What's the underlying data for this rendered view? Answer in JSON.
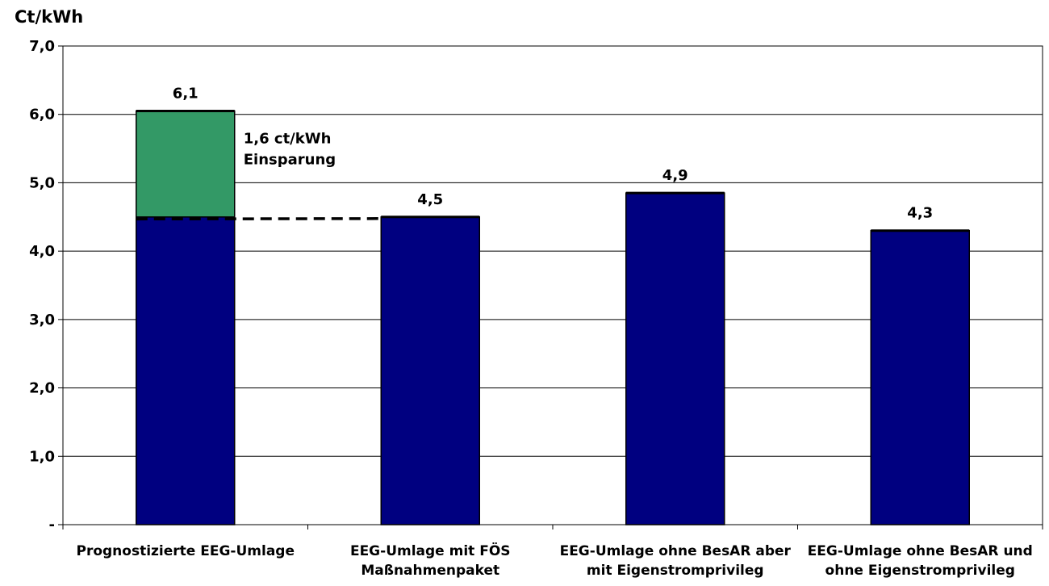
{
  "chart_data": {
    "type": "bar",
    "stacked": true,
    "ylabel": "Ct/kWh",
    "ylim": [
      0,
      7
    ],
    "y_ticks": [
      {
        "value": 0,
        "label": "-"
      },
      {
        "value": 1,
        "label": "1,0"
      },
      {
        "value": 2,
        "label": "2,0"
      },
      {
        "value": 3,
        "label": "3,0"
      },
      {
        "value": 4,
        "label": "4,0"
      },
      {
        "value": 5,
        "label": "5,0"
      },
      {
        "value": 6,
        "label": "6,0"
      },
      {
        "value": 7,
        "label": "7,0"
      }
    ],
    "grid": true,
    "legend": "none",
    "categories": [
      [
        "Prognostizierte EEG-Umlage"
      ],
      [
        "EEG-Umlage mit FÖS",
        "Maßnahmenpaket"
      ],
      [
        "EEG-Umlage ohne BesAR aber",
        "mit Eigenstromprivileg"
      ],
      [
        "EEG-Umlage ohne BesAR und",
        "ohne Eigenstromprivileg"
      ]
    ],
    "series": [
      {
        "values": [
          4.5,
          4.5,
          4.85,
          4.3
        ],
        "color": "#000080"
      },
      {
        "values": [
          1.55,
          0,
          0,
          0
        ],
        "color": "#339966"
      }
    ],
    "data_labels": [
      "6,1",
      "4,5",
      "4,9",
      "4,3"
    ],
    "annotation": {
      "lines": [
        "1,6 ct/kWh",
        "Einsparung"
      ],
      "reference_value": 4.47
    }
  }
}
